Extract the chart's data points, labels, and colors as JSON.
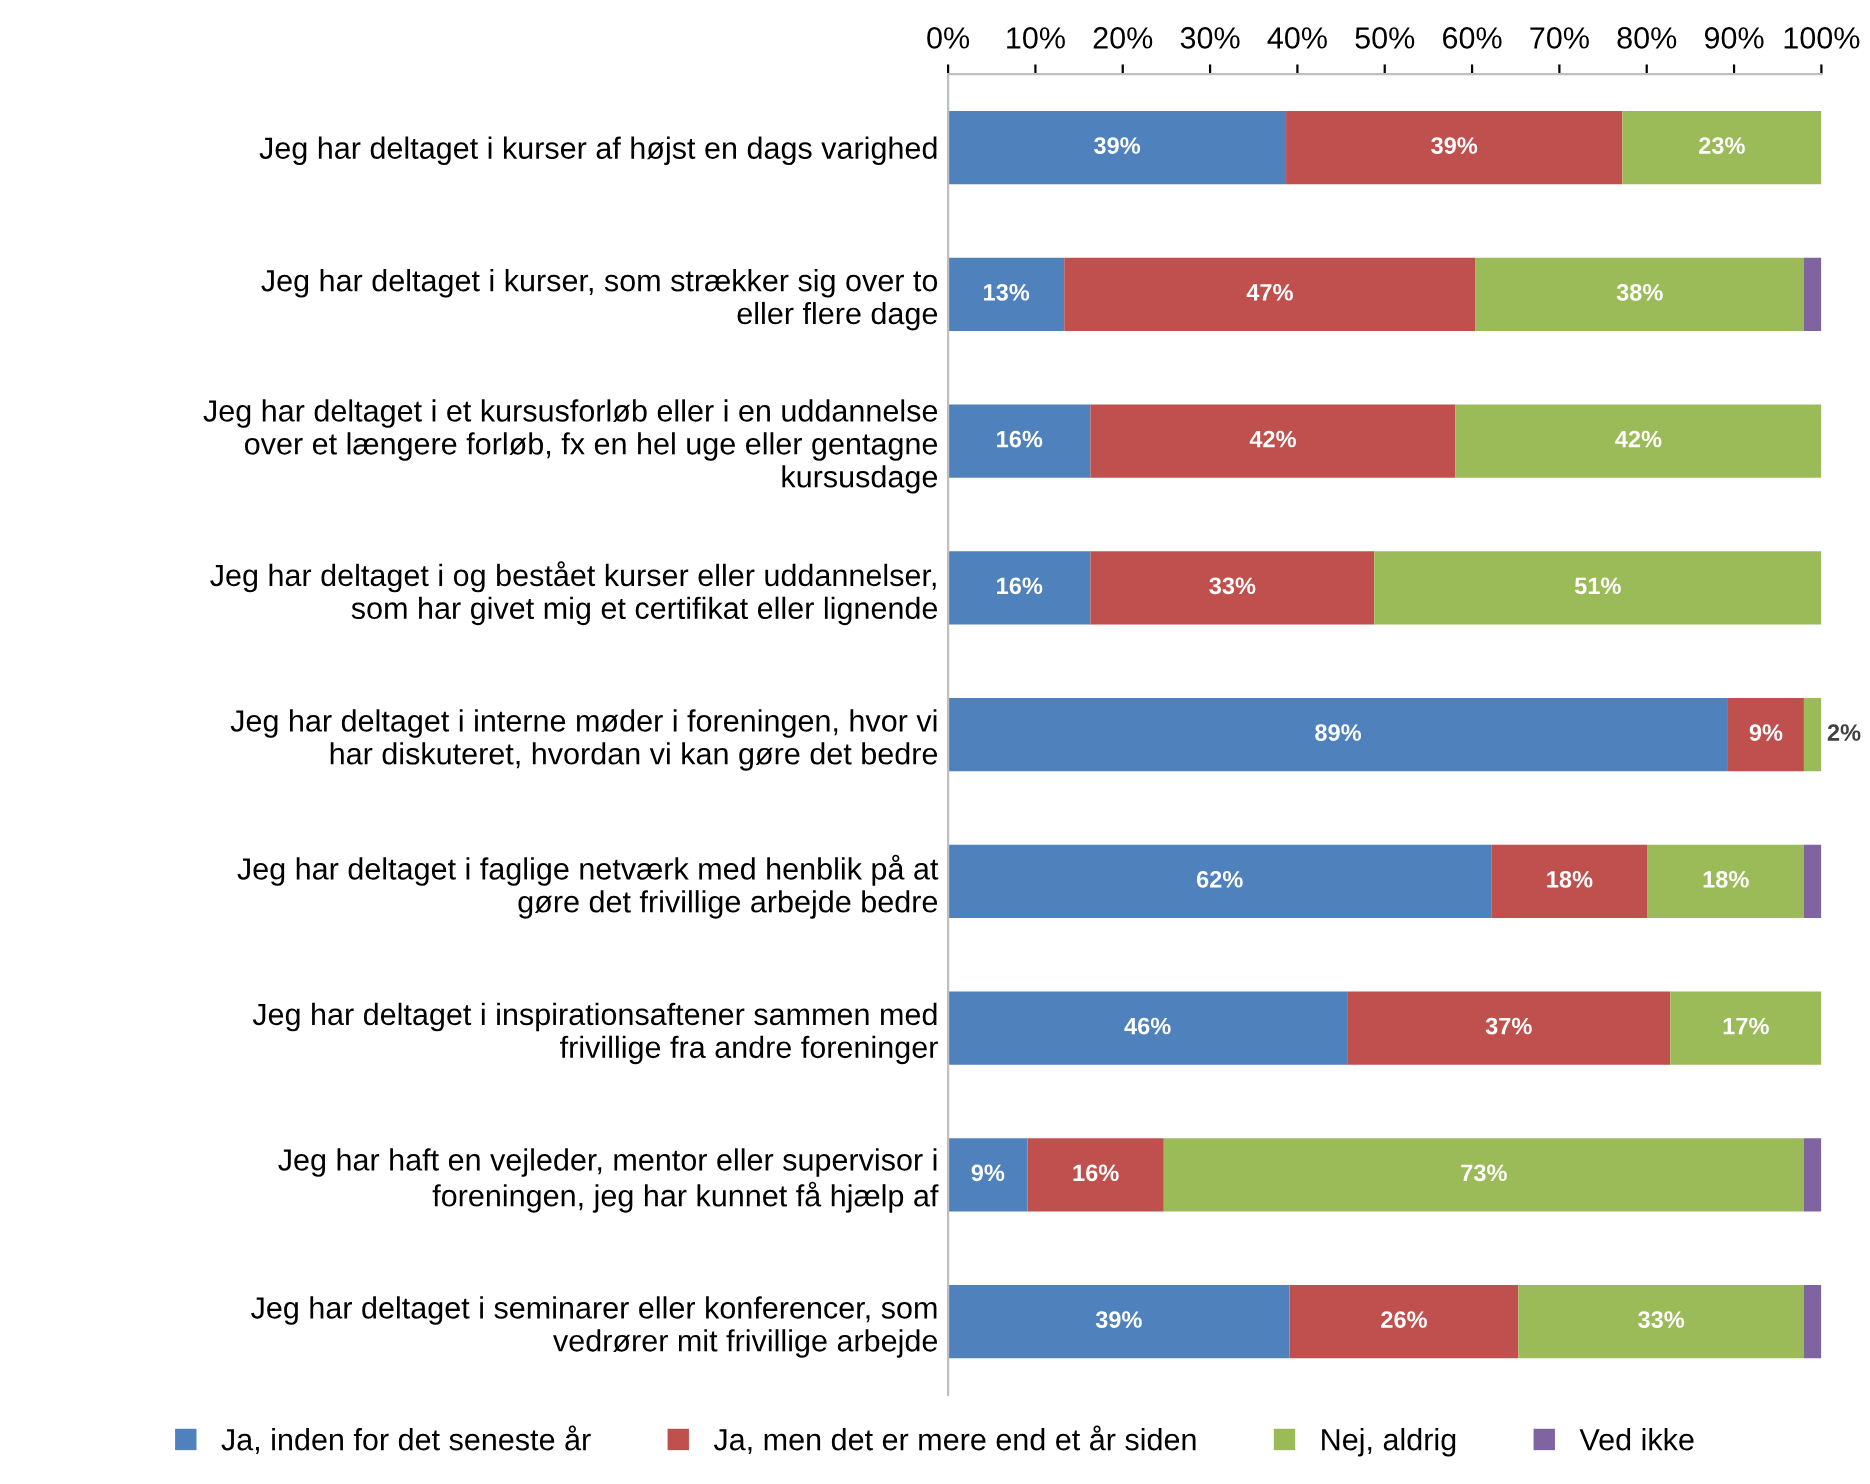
{
  "chart_data": {
    "type": "bar",
    "orientation": "horizontal",
    "stacked": true,
    "categories": [
      "Jeg har deltaget i kurser af højst en dags varighed",
      "Jeg har deltaget i kurser, som strækker sig over to\neller flere dage",
      "Jeg har deltaget i et kursusforløb eller i en uddannelse\nover et længere forløb, fx en hel uge eller gentagne\nkursusdage",
      "Jeg har deltaget i og bestået kurser eller uddannelser,\nsom har givet mig et certifikat eller lignende",
      "Jeg har deltaget i interne møder i foreningen, hvor vi\nhar diskuteret, hvordan vi kan gøre det bedre",
      "Jeg har deltaget i faglige netværk med henblik på at\ngøre det frivillige arbejde bedre",
      "Jeg har deltaget i inspirationsaftener sammen med\nfrivillige fra andre foreninger",
      "Jeg har haft en vejleder, mentor eller supervisor i\nforeningen, jeg har kunnet få hjælp af",
      "Jeg har deltaget i seminarer eller konferencer, som\nvedrører mit frivillige arbejde"
    ],
    "series": [
      {
        "name": "Ja, inden for det seneste år",
        "color": "#4f81bd",
        "values": [
          38.7,
          13.3,
          16.3,
          16.3,
          89.3,
          62.2,
          45.7,
          9.1,
          39.1
        ],
        "value_labels": [
          "39%",
          "13%",
          "16%",
          "16%",
          "89%",
          "62%",
          "46%",
          "9%",
          "39%"
        ]
      },
      {
        "name": "Ja, men det er mere end et år siden",
        "color": "#c0504d",
        "values": [
          38.5,
          47.1,
          41.8,
          32.5,
          8.7,
          17.9,
          37.0,
          15.6,
          26.2
        ],
        "value_labels": [
          "39%",
          "47%",
          "42%",
          "33%",
          "9%",
          "18%",
          "37%",
          "16%",
          "26%"
        ]
      },
      {
        "name": "Nej, aldrig",
        "color": "#9bbb59",
        "values": [
          22.8,
          37.6,
          41.9,
          51.2,
          2.0,
          17.9,
          17.3,
          73.3,
          32.7
        ],
        "value_labels": [
          "23%",
          "38%",
          "42%",
          "51%",
          "2%",
          "18%",
          "17%",
          "73%",
          "33%"
        ]
      },
      {
        "name": "Ved ikke",
        "color": "#8064a2",
        "values": [
          0,
          2.0,
          0,
          0,
          0,
          2.0,
          0,
          2.0,
          2.0
        ]
      }
    ],
    "xlim": [
      0,
      100
    ],
    "xticks": [
      {
        "value": 0,
        "label": "0%"
      },
      {
        "value": 10,
        "label": "10%"
      },
      {
        "value": 20,
        "label": "20%"
      },
      {
        "value": 30,
        "label": "30%"
      },
      {
        "value": 40,
        "label": "40%"
      },
      {
        "value": 50,
        "label": "50%"
      },
      {
        "value": 60,
        "label": "60%"
      },
      {
        "value": 70,
        "label": "70%"
      },
      {
        "value": 80,
        "label": "80%"
      },
      {
        "value": 90,
        "label": "90%"
      },
      {
        "value": 100,
        "label": "100%"
      }
    ],
    "grid": false,
    "legend": "bottom"
  }
}
